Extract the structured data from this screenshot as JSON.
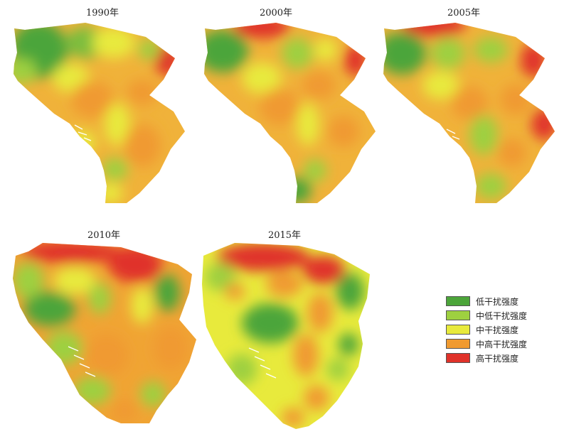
{
  "panels": [
    {
      "title": "1990年"
    },
    {
      "title": "2000年"
    },
    {
      "title": "2005年"
    },
    {
      "title": "2010年"
    },
    {
      "title": "2015年"
    }
  ],
  "legend": {
    "items": [
      {
        "label": "低干扰强度",
        "color": "#4ca53a"
      },
      {
        "label": "中低干扰强度",
        "color": "#9ed040"
      },
      {
        "label": "中干扰强度",
        "color": "#e8ea3c"
      },
      {
        "label": "中高干扰强度",
        "color": "#f09a30"
      },
      {
        "label": "高干扰强度",
        "color": "#e0322a"
      }
    ]
  }
}
